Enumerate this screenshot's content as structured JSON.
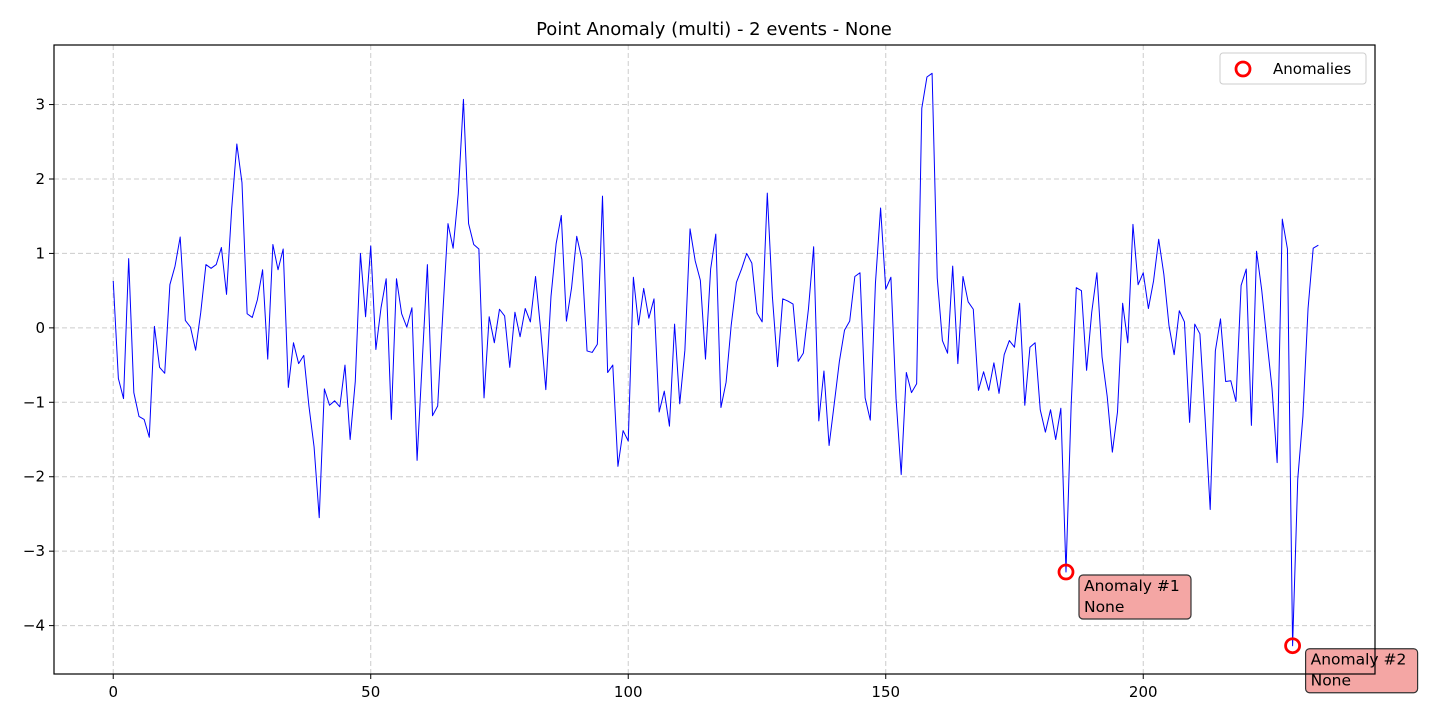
{
  "chart_data": {
    "type": "line",
    "title": "Point Anomaly (multi) - 2 events - None",
    "xlabel": "",
    "ylabel": "",
    "xlim": [
      -11.5,
      245
    ],
    "ylim": [
      -4.65,
      3.8
    ],
    "xticks": [
      0,
      50,
      100,
      150,
      200
    ],
    "yticks": [
      -4,
      -3,
      -2,
      -1,
      0,
      1,
      2,
      3
    ],
    "grid": true,
    "legend": {
      "placement": "top-right",
      "entries": [
        "Anomalies"
      ]
    },
    "series": [
      {
        "color": "#0000ff",
        "y": [
          0.63,
          -0.68,
          -0.95,
          0.93,
          -0.87,
          -1.19,
          -1.23,
          -1.47,
          0.02,
          -0.53,
          -0.61,
          0.58,
          0.83,
          1.22,
          0.1,
          0.01,
          -0.3,
          0.21,
          0.85,
          0.8,
          0.85,
          1.08,
          0.45,
          1.6,
          2.47,
          1.95,
          0.19,
          0.14,
          0.38,
          0.78,
          -0.42,
          1.12,
          0.78,
          1.06,
          -0.8,
          -0.2,
          -0.48,
          -0.37,
          -1.05,
          -1.6,
          -2.55,
          -0.82,
          -1.04,
          -0.98,
          -1.06,
          -0.5,
          -1.5,
          -0.72,
          1.0,
          0.15,
          1.1,
          -0.29,
          0.27,
          0.66,
          -1.23,
          0.66,
          0.19,
          0.01,
          0.27,
          -1.78,
          -0.45,
          0.85,
          -1.18,
          -1.05,
          0.2,
          1.4,
          1.07,
          1.8,
          3.07,
          1.4,
          1.12,
          1.06,
          -0.94,
          0.15,
          -0.2,
          0.25,
          0.16,
          -0.53,
          0.21,
          -0.12,
          0.26,
          0.08,
          0.69,
          -0.03,
          -0.83,
          0.42,
          1.13,
          1.51,
          0.09,
          0.54,
          1.23,
          0.92,
          -0.31,
          -0.33,
          -0.22,
          1.77,
          -0.6,
          -0.5,
          -1.86,
          -1.38,
          -1.52,
          0.68,
          0.04,
          0.53,
          0.13,
          0.39,
          -1.13,
          -0.85,
          -1.32,
          0.05,
          -1.02,
          -0.3,
          1.33,
          0.9,
          0.64,
          -0.42,
          0.79,
          1.26,
          -1.07,
          -0.73,
          0.04,
          0.61,
          0.79,
          1.0,
          0.87,
          0.2,
          0.08,
          1.81,
          0.41,
          -0.52,
          0.39,
          0.36,
          0.32,
          -0.45,
          -0.34,
          0.26,
          1.09,
          -1.25,
          -0.58,
          -1.58,
          -1.02,
          -0.45,
          -0.03,
          0.09,
          0.69,
          0.74,
          -0.94,
          -1.24,
          0.6,
          1.61,
          0.52,
          0.68,
          -0.95,
          -1.97,
          -0.6,
          -0.87,
          -0.75,
          2.95,
          3.37,
          3.42,
          0.67,
          -0.17,
          -0.34,
          0.83,
          -0.48,
          0.69,
          0.35,
          0.25,
          -0.84,
          -0.59,
          -0.84,
          -0.47,
          -0.88,
          -0.36,
          -0.17,
          -0.26,
          0.33,
          -1.04,
          -0.26,
          -0.2,
          -1.1,
          -1.4,
          -1.1,
          -1.5,
          -1.08,
          -3.28,
          -1.05,
          0.54,
          0.5,
          -0.57,
          0.21,
          0.74,
          -0.39,
          -0.92,
          -1.67,
          -1.13,
          0.33,
          -0.2,
          1.39,
          0.58,
          0.74,
          0.26,
          0.63,
          1.19,
          0.72,
          0.03,
          -0.36,
          0.23,
          0.08,
          -1.27,
          0.05,
          -0.08,
          -1.2,
          -2.44,
          -0.31,
          0.12,
          -0.72,
          -0.71,
          -0.99,
          0.57,
          0.79,
          -1.31,
          1.03,
          0.51,
          -0.16,
          -0.81,
          -1.81,
          1.46,
          1.06,
          -4.27,
          -2.03,
          -1.19,
          0.26,
          1.07,
          1.11
        ]
      }
    ],
    "anomalies": [
      {
        "name": "Anomalies",
        "x": 185,
        "y": -3.28,
        "label_line1": "Anomaly #1",
        "label_line2": "None"
      },
      {
        "name": "Anomalies",
        "x": 229,
        "y": -4.27,
        "label_line1": "Anomaly #2",
        "label_line2": "None"
      }
    ],
    "colors": {
      "line": "#0000ff",
      "anomaly_marker": "#ff0000",
      "annotation_fill": "#f4a6a4",
      "annotation_edge": "#333333",
      "grid": "#cccccc"
    }
  }
}
